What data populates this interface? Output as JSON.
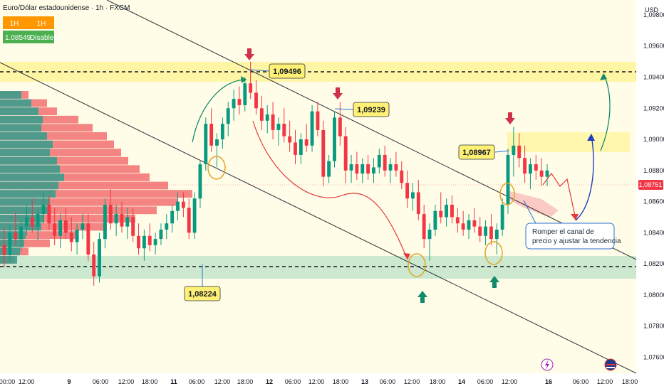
{
  "header": {
    "symbol_line": "Euro/Dólar estadounidense · 1h · FXCM",
    "badge_left": "1H",
    "badge_right": "1H",
    "price_badge": "1.08549",
    "disabled_badge": "Disabled"
  },
  "colors": {
    "bull": "#089981",
    "bear": "#f23645",
    "background": "#fffde8",
    "band": "#fff59d",
    "support_band": "#b7dfc4",
    "channel_line": "#2a2e39"
  },
  "price_axis": {
    "currency": "USD",
    "current_price": "1,08751",
    "ticks": [
      "1,09800",
      "1,09600",
      "1,09400",
      "1,09200",
      "1,09000",
      "1,08800",
      "1,08600",
      "1,08400",
      "1,08200",
      "1,08000",
      "1,07800",
      "1,07600"
    ]
  },
  "time_axis": {
    "labels": [
      "00:00",
      "12:00",
      "9",
      "06:00",
      "12:00",
      "18:00",
      "11",
      "06:00",
      "12:00",
      "18:00",
      "12",
      "06:00",
      "12:00",
      "18:00",
      "13",
      "06:00",
      "12:00",
      "18:00",
      "14",
      "06:00",
      "12:00",
      "16",
      "06:00",
      "12:00",
      "18:00"
    ]
  },
  "callouts": {
    "top_high": "1,09496",
    "second_high": "1,09239",
    "third_high": "1,08967",
    "support": "1,08224"
  },
  "note": {
    "line1": "Romper el canal de",
    "line2": "precio y ajustar la tendencia"
  },
  "chart_data": {
    "type": "candlestick",
    "series": [
      {
        "name": "EUR/USD 1h",
        "ohlc": [
          [
            1.0832,
            1.0843,
            1.0818,
            1.0826
          ],
          [
            1.0826,
            1.0845,
            1.0822,
            1.084
          ],
          [
            1.084,
            1.0853,
            1.0832,
            1.0836
          ],
          [
            1.0836,
            1.0848,
            1.0828,
            1.0844
          ],
          [
            1.0844,
            1.0858,
            1.0838,
            1.085
          ],
          [
            1.085,
            1.0862,
            1.084,
            1.0844
          ],
          [
            1.0844,
            1.0855,
            1.0835,
            1.0852
          ],
          [
            1.0852,
            1.0866,
            1.0846,
            1.0858
          ],
          [
            1.0858,
            1.0864,
            1.0842,
            1.0846
          ],
          [
            1.0846,
            1.0856,
            1.0832,
            1.0838
          ],
          [
            1.0838,
            1.0852,
            1.083,
            1.0848
          ],
          [
            1.0848,
            1.0856,
            1.0836,
            1.084
          ],
          [
            1.084,
            1.085,
            1.0828,
            1.0834
          ],
          [
            1.0834,
            1.0846,
            1.0826,
            1.0842
          ],
          [
            1.0842,
            1.0852,
            1.0836,
            1.0846
          ],
          [
            1.0846,
            1.0852,
            1.0822,
            1.0826
          ],
          [
            1.0826,
            1.0834,
            1.0806,
            1.0812
          ],
          [
            1.0812,
            1.084,
            1.0808,
            1.0836
          ],
          [
            1.0836,
            1.0862,
            1.083,
            1.0858
          ],
          [
            1.0858,
            1.0868,
            1.0842,
            1.0846
          ],
          [
            1.0846,
            1.0858,
            1.0838,
            1.0852
          ],
          [
            1.0852,
            1.086,
            1.084,
            1.0844
          ],
          [
            1.0844,
            1.0856,
            1.0836,
            1.085
          ],
          [
            1.085,
            1.0856,
            1.0834,
            1.0838
          ],
          [
            1.0838,
            1.0846,
            1.0826,
            1.083
          ],
          [
            1.083,
            1.0842,
            1.0822,
            1.0838
          ],
          [
            1.0838,
            1.0846,
            1.0828,
            1.0832
          ],
          [
            1.0832,
            1.084,
            1.0826,
            1.0836
          ],
          [
            1.0836,
            1.0846,
            1.0832,
            1.0842
          ],
          [
            1.0842,
            1.0852,
            1.0836,
            1.0846
          ],
          [
            1.0846,
            1.0858,
            1.084,
            1.0854
          ],
          [
            1.0854,
            1.0866,
            1.0848,
            1.086
          ],
          [
            1.086,
            1.0866,
            1.085,
            1.0856
          ],
          [
            1.0856,
            1.0862,
            1.0836,
            1.084
          ],
          [
            1.084,
            1.0866,
            1.0836,
            1.0862
          ],
          [
            1.0862,
            1.0886,
            1.0856,
            1.0884
          ],
          [
            1.0884,
            1.0914,
            1.088,
            1.091
          ],
          [
            1.091,
            1.092,
            1.0892,
            1.0896
          ],
          [
            1.0896,
            1.0904,
            1.0882,
            1.09
          ],
          [
            1.09,
            1.0914,
            1.0894,
            1.091
          ],
          [
            1.091,
            1.0924,
            1.0902,
            1.092
          ],
          [
            1.092,
            1.0932,
            1.0912,
            1.0926
          ],
          [
            1.0926,
            1.0934,
            1.0916,
            1.0922
          ],
          [
            1.0922,
            1.094,
            1.0918,
            1.0936
          ],
          [
            1.0936,
            1.095,
            1.0926,
            1.093
          ],
          [
            1.093,
            1.0938,
            1.0916,
            1.092
          ],
          [
            1.092,
            1.0928,
            1.0906,
            1.0912
          ],
          [
            1.0912,
            1.0922,
            1.0904,
            1.0916
          ],
          [
            1.0916,
            1.0924,
            1.09,
            1.0906
          ],
          [
            1.0906,
            1.0914,
            1.0896,
            1.091
          ],
          [
            1.091,
            1.092,
            1.0898,
            1.0902
          ],
          [
            1.0902,
            1.0912,
            1.0892,
            1.0898
          ],
          [
            1.0898,
            1.0906,
            1.0884,
            1.089
          ],
          [
            1.089,
            1.0904,
            1.0884,
            1.09
          ],
          [
            1.09,
            1.091,
            1.0892,
            1.0896
          ],
          [
            1.0896,
            1.0922,
            1.0892,
            1.0918
          ],
          [
            1.0918,
            1.0924,
            1.0902,
            1.0906
          ],
          [
            1.0906,
            1.0912,
            1.087,
            1.0876
          ],
          [
            1.0876,
            1.089,
            1.0872,
            1.0886
          ],
          [
            1.0886,
            1.0918,
            1.0882,
            1.0914
          ],
          [
            1.0914,
            1.0924,
            1.0896,
            1.0902
          ],
          [
            1.0902,
            1.0908,
            1.0872,
            1.088
          ],
          [
            1.088,
            1.089,
            1.0872,
            1.0884
          ],
          [
            1.0884,
            1.0892,
            1.0874,
            1.0878
          ],
          [
            1.0878,
            1.0888,
            1.0872,
            1.0884
          ],
          [
            1.0884,
            1.089,
            1.0874,
            1.0878
          ],
          [
            1.0878,
            1.0888,
            1.0872,
            1.0882
          ],
          [
            1.0882,
            1.0894,
            1.0878,
            1.089
          ],
          [
            1.089,
            1.0896,
            1.0876,
            1.088
          ],
          [
            1.088,
            1.0888,
            1.0872,
            1.0884
          ],
          [
            1.0884,
            1.0892,
            1.0876,
            1.088
          ],
          [
            1.088,
            1.0886,
            1.0868,
            1.0872
          ],
          [
            1.0872,
            1.088,
            1.0856,
            1.0862
          ],
          [
            1.0862,
            1.0872,
            1.0854,
            1.0866
          ],
          [
            1.0866,
            1.0874,
            1.0848,
            1.0852
          ],
          [
            1.0852,
            1.0858,
            1.083,
            1.0836
          ],
          [
            1.0836,
            1.0846,
            1.0822,
            1.0842
          ],
          [
            1.0842,
            1.0858,
            1.0838,
            1.0854
          ],
          [
            1.0854,
            1.0866,
            1.0846,
            1.085
          ],
          [
            1.085,
            1.0862,
            1.0844,
            1.0858
          ],
          [
            1.0858,
            1.0864,
            1.0846,
            1.085
          ],
          [
            1.085,
            1.0856,
            1.084,
            1.0846
          ],
          [
            1.0846,
            1.0854,
            1.0838,
            1.0842
          ],
          [
            1.0842,
            1.0852,
            1.0836,
            1.0848
          ],
          [
            1.0848,
            1.0856,
            1.084,
            1.0844
          ],
          [
            1.0844,
            1.085,
            1.0834,
            1.0838
          ],
          [
            1.0838,
            1.0848,
            1.0832,
            1.0844
          ],
          [
            1.0844,
            1.0852,
            1.0832,
            1.0836
          ],
          [
            1.0836,
            1.0846,
            1.0826,
            1.0842
          ],
          [
            1.0842,
            1.0862,
            1.0838,
            1.0858
          ],
          [
            1.0858,
            1.0894,
            1.0852,
            1.089
          ],
          [
            1.089,
            1.0908,
            1.0876,
            1.0896
          ],
          [
            1.0896,
            1.0904,
            1.0882,
            1.0888
          ],
          [
            1.0888,
            1.0896,
            1.0872,
            1.0878
          ],
          [
            1.0878,
            1.0888,
            1.0868,
            1.0884
          ],
          [
            1.0884,
            1.089,
            1.0874,
            1.088
          ],
          [
            1.088,
            1.0888,
            1.087,
            1.0876
          ],
          [
            1.0876,
            1.0884,
            1.087,
            1.088
          ]
        ]
      }
    ],
    "levels": {
      "resistance": 1.095,
      "support": 1.0822
    },
    "ylim": [
      1.0752,
      1.0985
    ],
    "volume_profile": "left-side horizontal histogram",
    "grid": false
  }
}
